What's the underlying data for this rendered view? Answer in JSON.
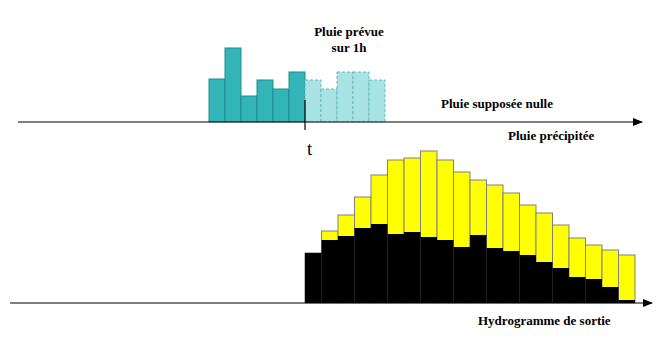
{
  "chart_data": [
    {
      "type": "bar",
      "x_label": "Pluie précipitée",
      "annotations": [
        "Pluie prévue\nsur 1h",
        "Pluie supposée nulle",
        "t"
      ],
      "categories": [
        null,
        null,
        null,
        null,
        null,
        null,
        null,
        null,
        null,
        null,
        null
      ],
      "series": [
        {
          "color": "#33b5b8",
          "line_style": "solid",
          "values": [
            43,
            74,
            26,
            42,
            33,
            50,
            null,
            null,
            null,
            null,
            null
          ]
        },
        {
          "color": "#a8e4e6",
          "line_style": "dashed",
          "values": [
            null,
            null,
            null,
            null,
            null,
            null,
            42,
            33,
            50,
            50,
            42
          ]
        }
      ],
      "ylim": [
        0,
        80
      ],
      "stacked": false,
      "tick_labels": false
    },
    {
      "type": "bar",
      "x_label": "Hydrogramme de sortie",
      "categories": [
        null,
        null,
        null,
        null,
        null,
        null,
        null,
        null,
        null,
        null,
        null,
        null,
        null,
        null,
        null,
        null,
        null,
        null,
        null,
        null
      ],
      "series": [
        {
          "color": "#ffff00",
          "line_style": "solid",
          "values": [
            50,
            72,
            88,
            106,
            128,
            143,
            145,
            152,
            143,
            131,
            123,
            118,
            110,
            98,
            90,
            78,
            65,
            58,
            53,
            48
          ]
        },
        {
          "color": "#000000",
          "line_style": "solid",
          "values": [
            50,
            63,
            67,
            75,
            79,
            69,
            71,
            66,
            63,
            56,
            68,
            55,
            52,
            48,
            41,
            35,
            26,
            24,
            16,
            3
          ]
        }
      ],
      "ylim": [
        0,
        160
      ],
      "stacked": false,
      "tick_labels": false
    }
  ]
}
